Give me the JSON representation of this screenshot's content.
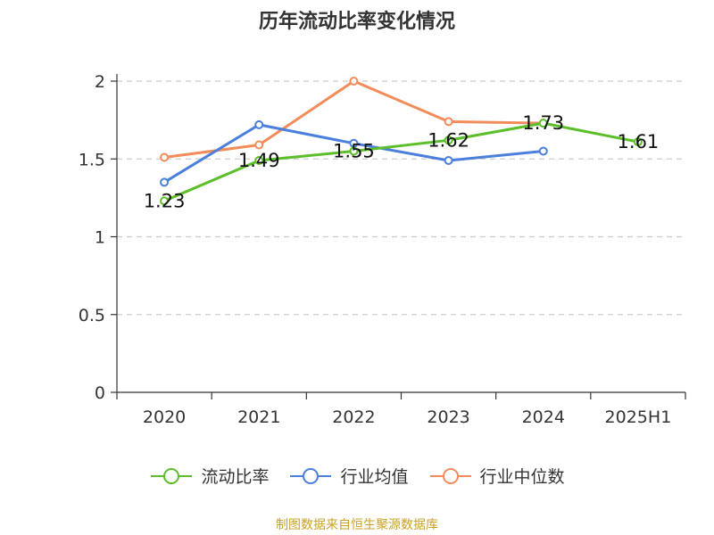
{
  "title": "历年流动比率变化情况",
  "source": "制图数据来自恒生聚源数据库",
  "chart_data": {
    "type": "line",
    "categories": [
      "2020",
      "2021",
      "2022",
      "2023",
      "2024",
      "2025H1"
    ],
    "ylim": [
      0,
      2
    ],
    "yticks": [
      0,
      0.5,
      1,
      1.5,
      2
    ],
    "ytick_labels": [
      "0",
      "0.5",
      "1",
      "1.5",
      "2"
    ],
    "grid": true,
    "legend_position": "bottom",
    "series": [
      {
        "name": "流动比率",
        "color": "#5cbf2a",
        "values": [
          1.23,
          1.49,
          1.55,
          1.62,
          1.73,
          1.61
        ],
        "labels": [
          "1.23",
          "1.49",
          "1.55",
          "1.62",
          "1.73",
          "1.61"
        ]
      },
      {
        "name": "行业均值",
        "color": "#4a7fdc",
        "values": [
          1.35,
          1.72,
          1.6,
          1.49,
          1.55,
          null
        ]
      },
      {
        "name": "行业中位数",
        "color": "#f28c5a",
        "values": [
          1.51,
          1.59,
          2.0,
          1.74,
          1.73,
          null
        ]
      }
    ]
  }
}
